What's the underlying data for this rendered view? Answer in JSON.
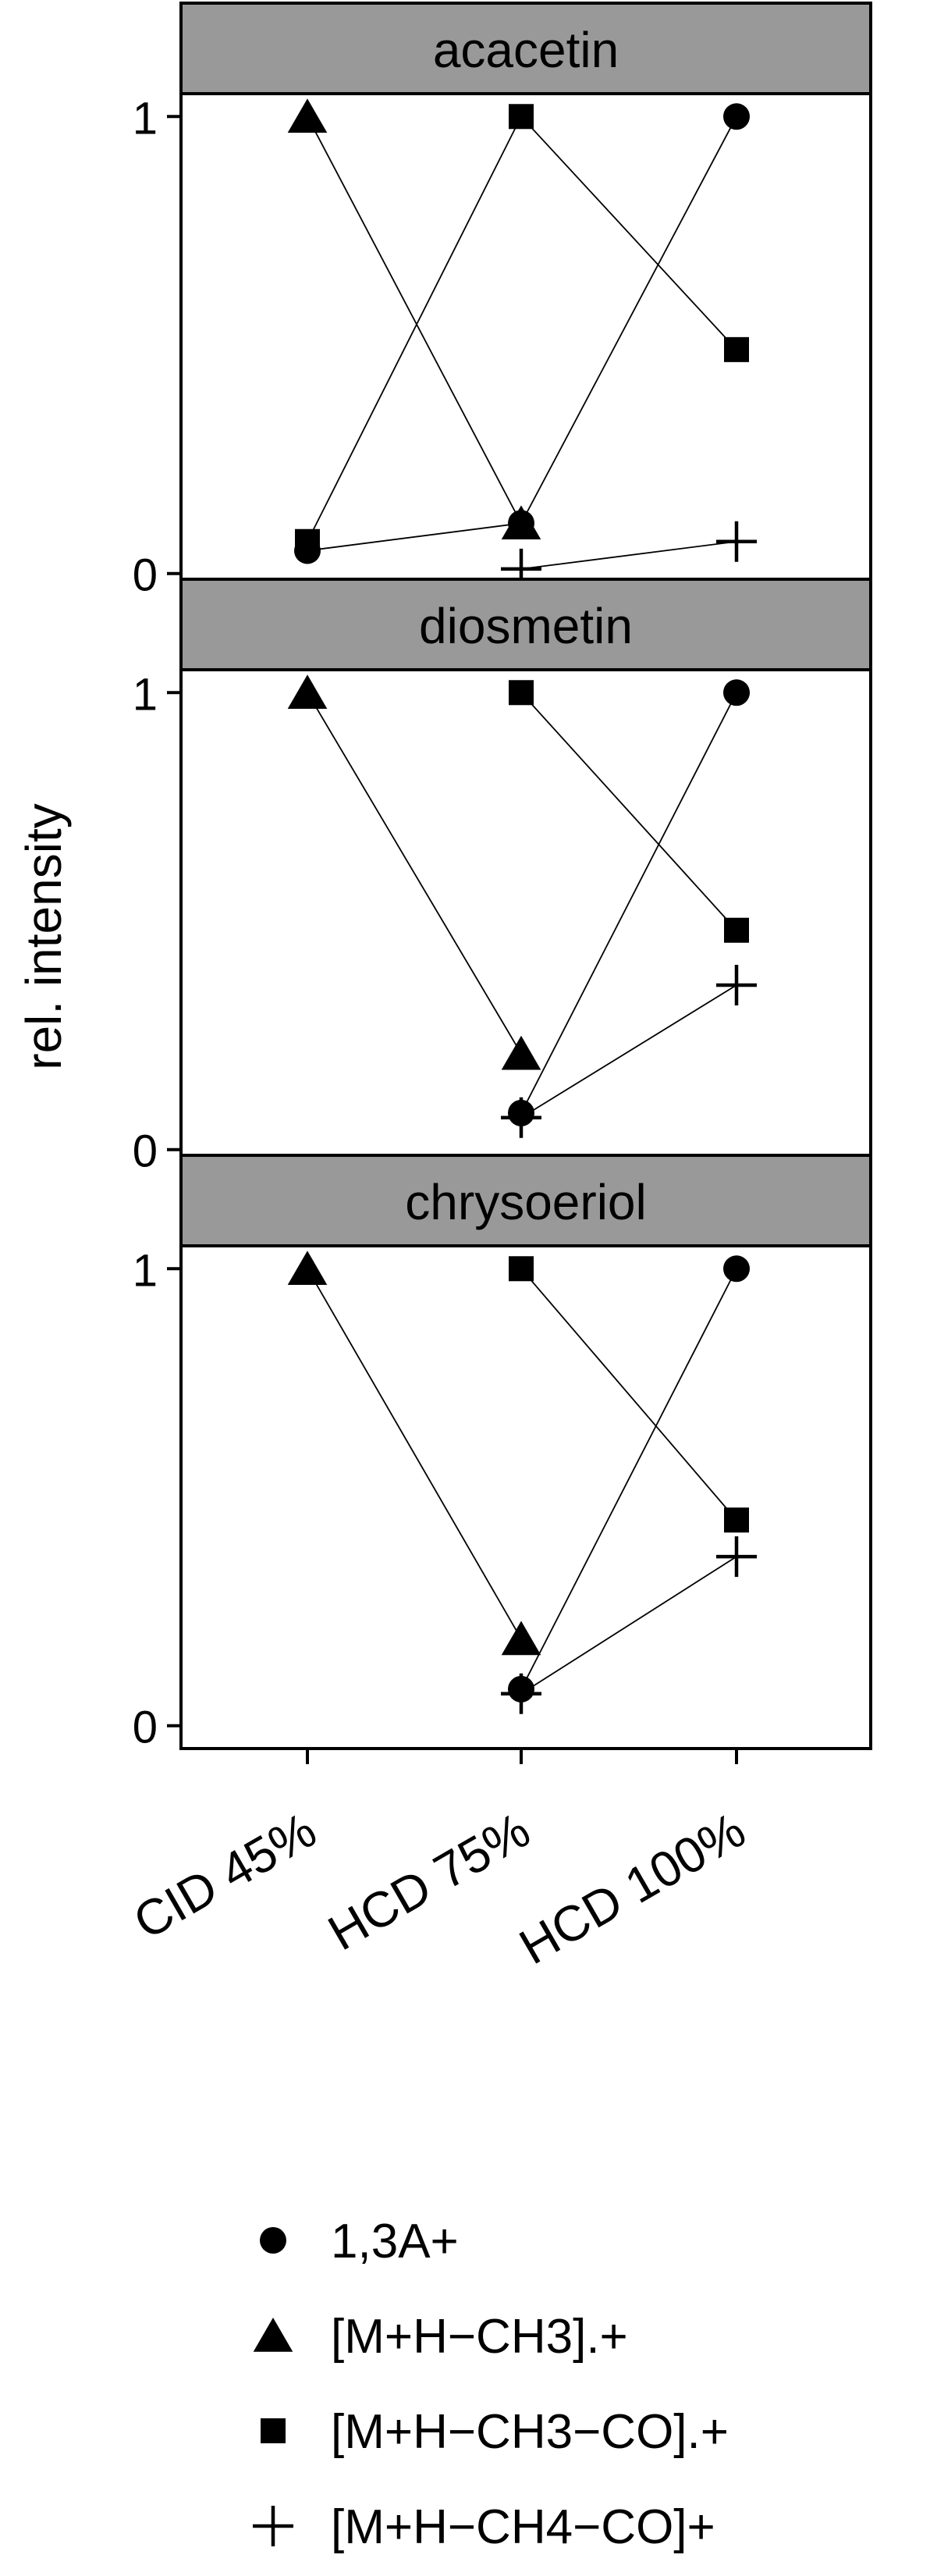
{
  "chart_data": {
    "type": "scatter",
    "ylabel": "rel. intensity",
    "xlabel": "",
    "categories": [
      "CID 45%",
      "HCD 75%",
      "HCD 100%"
    ],
    "y_ticks": [
      "0",
      "1"
    ],
    "ylim": [
      -0.05,
      1.05
    ],
    "grid": false,
    "legend_position": "bottom",
    "legend": [
      {
        "name": "1,3A+",
        "marker": "circle"
      },
      {
        "name": "[M+H−CH3].+",
        "marker": "triangle"
      },
      {
        "name": "[M+H−CH3−CO].+",
        "marker": "square"
      },
      {
        "name": "[M+H−CH4−CO]+",
        "marker": "plus"
      }
    ],
    "panels": [
      {
        "title": "acacetin",
        "series": [
          {
            "name": "1,3A+",
            "values": [
              0.05,
              0.11,
              1.0
            ]
          },
          {
            "name": "[M+H−CH3].+",
            "values": [
              1.0,
              0.11,
              null
            ]
          },
          {
            "name": "[M+H−CH3−CO].+",
            "values": [
              0.07,
              1.0,
              0.49
            ]
          },
          {
            "name": "[M+H−CH4−CO]+",
            "values": [
              null,
              0.01,
              0.07
            ]
          }
        ]
      },
      {
        "title": "diosmetin",
        "series": [
          {
            "name": "1,3A+",
            "values": [
              null,
              0.08,
              1.0
            ]
          },
          {
            "name": "[M+H−CH3].+",
            "values": [
              1.0,
              0.21,
              null
            ]
          },
          {
            "name": "[M+H−CH3−CO].+",
            "values": [
              null,
              1.0,
              0.48
            ]
          },
          {
            "name": "[M+H−CH4−CO]+",
            "values": [
              null,
              0.07,
              0.36
            ]
          }
        ]
      },
      {
        "title": "chrysoeriol",
        "series": [
          {
            "name": "1,3A+",
            "values": [
              null,
              0.08,
              1.0
            ]
          },
          {
            "name": "[M+H−CH3].+",
            "values": [
              1.0,
              0.19,
              null
            ]
          },
          {
            "name": "[M+H−CH3−CO].+",
            "values": [
              null,
              1.0,
              0.45
            ]
          },
          {
            "name": "[M+H−CH4−CO]+",
            "values": [
              null,
              0.07,
              0.37
            ]
          }
        ]
      }
    ],
    "colors": {
      "strip": "#999999",
      "ink": "#000000",
      "background": "#ffffff"
    }
  }
}
